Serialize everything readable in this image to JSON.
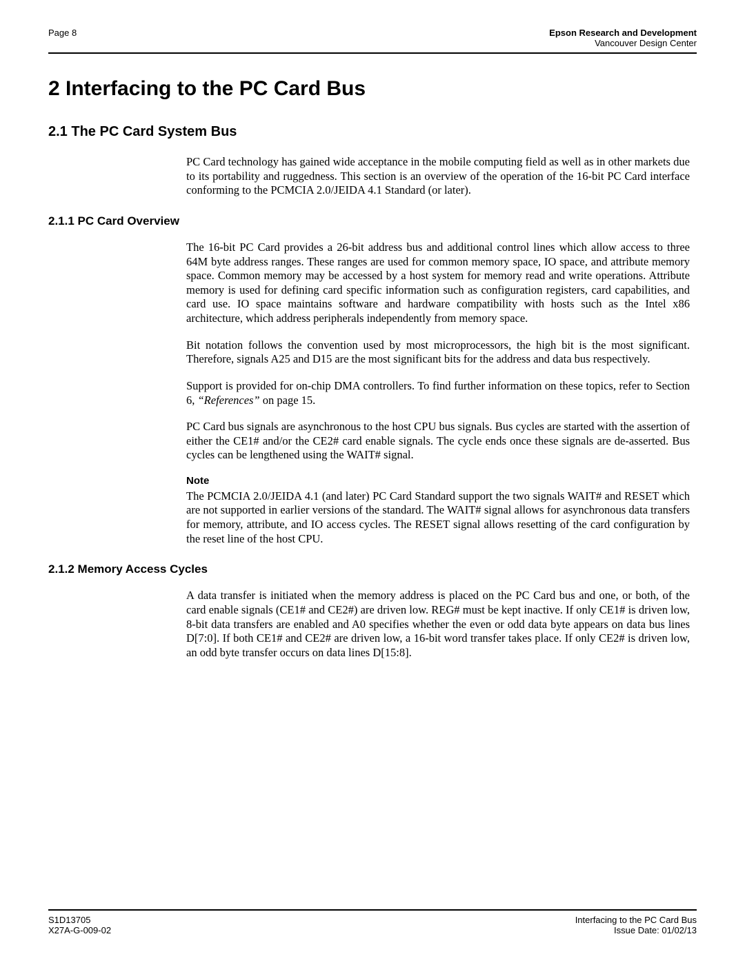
{
  "header": {
    "left": "Page 8",
    "right_line1": "Epson Research and Development",
    "right_line2": "Vancouver Design Center"
  },
  "title": "2  Interfacing to the PC Card Bus",
  "section_2_1": {
    "heading": "2.1  The PC Card System Bus",
    "p1": "PC Card technology has gained wide acceptance in the mobile computing field as well as in other markets due to its portability and ruggedness. This section is an overview of the operation of the 16-bit PC Card interface conforming to the PCMCIA 2.0/JEIDA 4.1 Standard (or later)."
  },
  "section_2_1_1": {
    "heading": "2.1.1  PC Card Overview",
    "p1": "The 16-bit PC Card provides a 26-bit address bus and additional control lines which allow access to three 64M byte address ranges. These ranges are used for common memory space, IO space, and attribute memory space. Common memory may be accessed by a host system for memory read and write operations. Attribute memory is used for defining card specific information such as configuration registers, card capabilities, and card use. IO space maintains software and hardware compatibility with hosts such as the Intel x86 architecture, which address peripherals independently from memory space.",
    "p2": "Bit notation follows the convention used by most microprocessors, the high bit is the most significant. Therefore, signals A25 and D15 are the most significant bits for the address and data bus respectively.",
    "p3_a": "Support is provided for on-chip DMA controllers. To find further information on these topics, refer to Section 6, ",
    "p3_ref": "“References”",
    "p3_b": " on page 15.",
    "p4": "PC Card bus signals are asynchronous to the host CPU bus signals. Bus cycles are started with the assertion of either the CE1# and/or the CE2# card enable signals. The cycle ends once these signals are de-asserted. Bus cycles can be lengthened using the WAIT# signal.",
    "note_label": "Note",
    "note_body": "The PCMCIA 2.0/JEIDA 4.1 (and later) PC Card Standard support the two signals WAIT# and RESET which are not supported in earlier versions of the standard. The WAIT# signal allows for asynchronous data transfers for memory, attribute, and IO access cycles. The RESET signal allows resetting of the card configuration by the reset line of the host CPU."
  },
  "section_2_1_2": {
    "heading": "2.1.2  Memory Access Cycles",
    "p1": "A data transfer is initiated when the memory address is placed on the PC Card bus and one, or both, of the card enable signals (CE1# and CE2#) are driven low. REG# must be kept inactive. If only CE1# is driven low, 8-bit data transfers are enabled and A0 specifies whether the even or odd data byte appears on data bus lines D[7:0]. If both CE1# and CE2# are driven low, a 16-bit word transfer takes place. If only CE2# is driven low, an odd byte transfer occurs on data lines D[15:8]."
  },
  "footer": {
    "left_line1": "S1D13705",
    "left_line2": "X27A-G-009-02",
    "right_line1": "Interfacing to the PC Card Bus",
    "right_line2": "Issue Date: 01/02/13"
  }
}
